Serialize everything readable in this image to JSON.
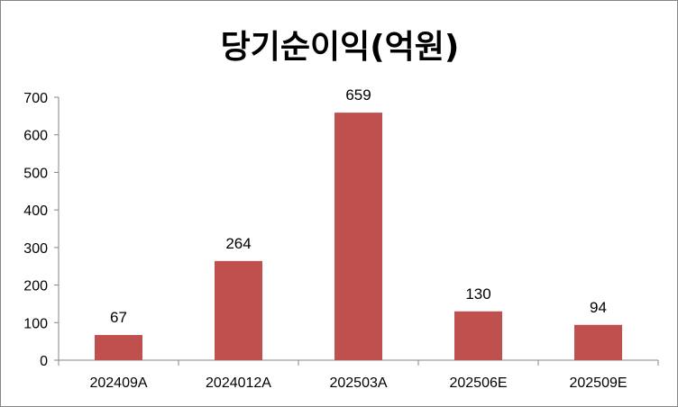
{
  "chart_data": {
    "type": "bar",
    "title": "당기순이익(억원)",
    "categories": [
      "202409A",
      "2024012A",
      "202503A",
      "202506E",
      "202509E"
    ],
    "series": [
      {
        "values": [
          67,
          264,
          659,
          130,
          94
        ]
      }
    ],
    "data_labels": [
      "67",
      "264",
      "659",
      "130",
      "94"
    ],
    "ylim": [
      0,
      700
    ],
    "yticks": [
      0,
      100,
      200,
      300,
      400,
      500,
      600,
      700
    ],
    "ytick_labels": [
      "0",
      "100",
      "200",
      "300",
      "400",
      "500",
      "600",
      "700"
    ],
    "grid": false,
    "legend": "none",
    "bar_color": "#c0504d",
    "axis_color": "#868686"
  }
}
